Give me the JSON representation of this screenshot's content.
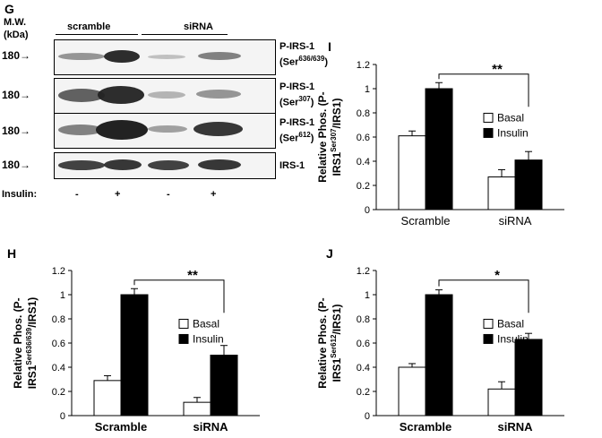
{
  "panel_g": {
    "letter": "G",
    "mw_label_line1": "M.W.",
    "mw_label_line2": "(kDa)",
    "group_scramble": "scramble",
    "group_sirna": "siRNA",
    "insulin_label": "Insulin:",
    "insulin_marks": [
      "-",
      "+",
      "-",
      "+"
    ],
    "rows": [
      {
        "mw": "180",
        "label_line1": "P-IRS-1",
        "label_pre": "(Ser",
        "label_sup": "636/639",
        "label_post": ")"
      },
      {
        "mw": "180",
        "label_line1": "P-IRS-1",
        "label_pre": "(Ser",
        "label_sup": "307",
        "label_post": ")"
      },
      {
        "mw": "180",
        "label_line1": "P-IRS-1",
        "label_pre": "(Ser",
        "label_sup": "612",
        "label_post": ")"
      },
      {
        "mw": "180",
        "label_line1": "IRS-1",
        "label_pre": "",
        "label_sup": "",
        "label_post": ""
      }
    ]
  },
  "chart_data": [
    {
      "panel": "I",
      "type": "bar",
      "categories": [
        "Scramble",
        "siRNA"
      ],
      "series": [
        {
          "name": "Basal",
          "values": [
            0.61,
            0.27
          ],
          "errors": [
            0.04,
            0.06
          ]
        },
        {
          "name": "Insulin",
          "values": [
            1.0,
            0.41
          ],
          "errors": [
            0.05,
            0.07
          ]
        }
      ],
      "ylabel_line1": "Relative Phos. (P-",
      "ylabel_line2_pre": "IRS1",
      "ylabel_line2_sup": "Ser307",
      "ylabel_line2_post": "/IRS1)",
      "yticks": [
        "0",
        "0.2",
        "0.4",
        "0.6",
        "0.8",
        "1",
        "1.2"
      ],
      "ylim": [
        0,
        1.2
      ],
      "significance": "**",
      "legend_position": "right"
    },
    {
      "panel": "H",
      "type": "bar",
      "categories": [
        "Scramble",
        "siRNA"
      ],
      "series": [
        {
          "name": "Basal",
          "values": [
            0.29,
            0.11
          ],
          "errors": [
            0.04,
            0.04
          ]
        },
        {
          "name": "Insulin",
          "values": [
            1.0,
            0.5
          ],
          "errors": [
            0.05,
            0.08
          ]
        }
      ],
      "ylabel_line1": "Relative Phos. (P-",
      "ylabel_line2_pre": "IRS1",
      "ylabel_line2_sup": "Ser636/639",
      "ylabel_line2_post": "/IRS1)",
      "yticks": [
        "0",
        "0.2",
        "0.4",
        "0.6",
        "0.8",
        "1",
        "1.2"
      ],
      "ylim": [
        0,
        1.2
      ],
      "significance": "**",
      "legend_position": "right"
    },
    {
      "panel": "J",
      "type": "bar",
      "categories": [
        "Scramble",
        "siRNA"
      ],
      "series": [
        {
          "name": "Basal",
          "values": [
            0.4,
            0.22
          ],
          "errors": [
            0.03,
            0.06
          ]
        },
        {
          "name": "Insulin",
          "values": [
            1.0,
            0.63
          ],
          "errors": [
            0.04,
            0.05
          ]
        }
      ],
      "ylabel_line1": "Relative Phos. (P-",
      "ylabel_line2_pre": "IRS1",
      "ylabel_line2_sup": "Ser612",
      "ylabel_line2_post": "/IRS1)",
      "yticks": [
        "0",
        "0.2",
        "0.4",
        "0.6",
        "0.8",
        "1",
        "1.2"
      ],
      "ylim": [
        0,
        1.2
      ],
      "significance": "*",
      "legend_position": "right"
    }
  ]
}
